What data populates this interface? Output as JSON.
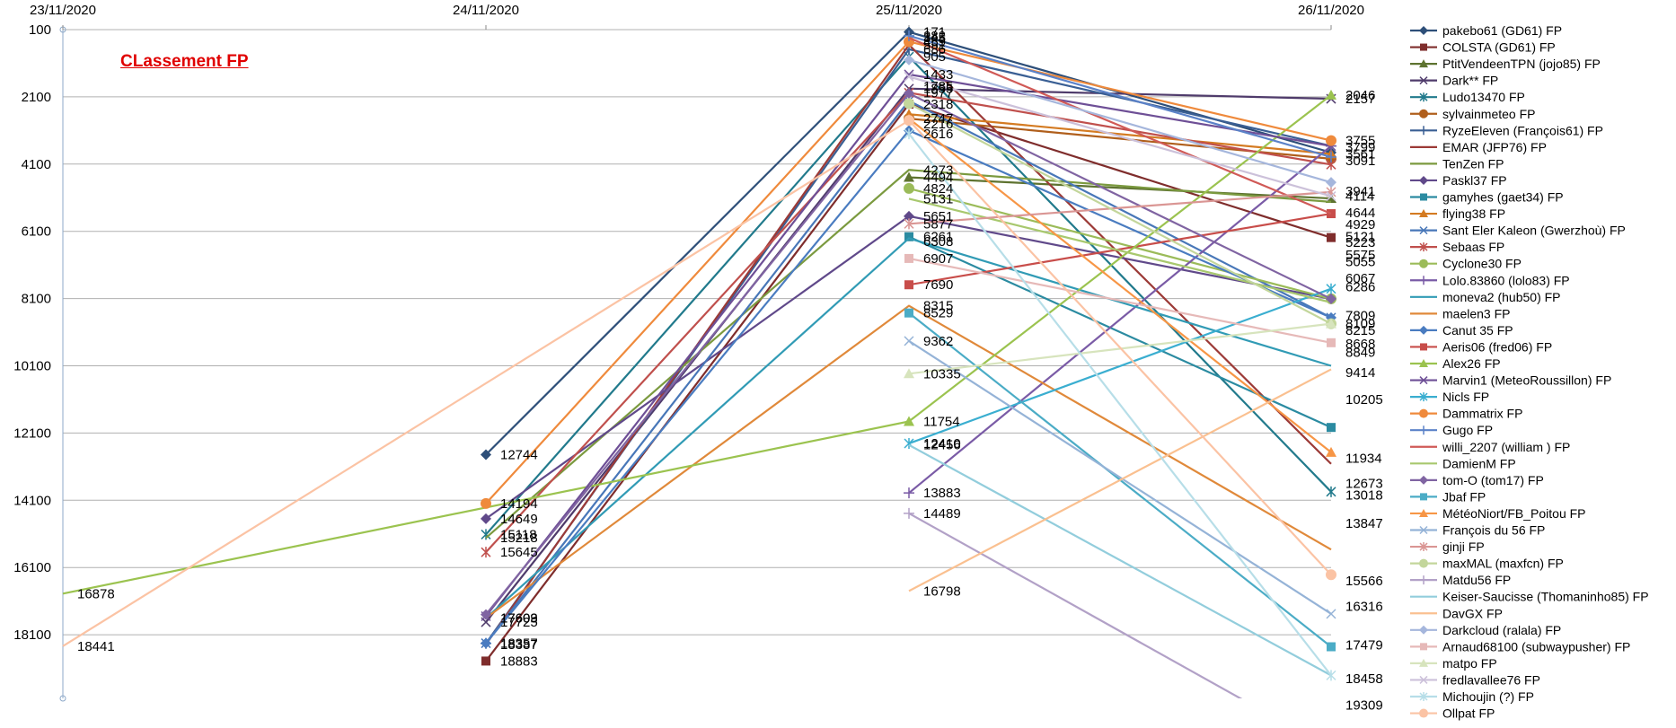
{
  "chart_data": {
    "type": "line",
    "title": "CLassement FP",
    "xlabel": "",
    "ylabel": "",
    "categories": [
      "23/11/2020",
      "24/11/2020",
      "25/11/2020",
      "26/11/2020"
    ],
    "y_ticks": [
      100,
      2100,
      4100,
      6100,
      8100,
      10100,
      12100,
      14100,
      16100,
      18100
    ],
    "ylim": [
      100,
      20100
    ],
    "y_reversed": true,
    "grid": true,
    "legend_position": "right",
    "series": [
      {
        "name": "pakebo61 (GD61) FP",
        "color": "#2e4f79",
        "marker": "diamond",
        "values": [
          null,
          12744,
          171,
          3755
        ]
      },
      {
        "name": "COLSTA (GD61) FP",
        "color": "#7f2d2c",
        "marker": "square",
        "values": [
          null,
          18883,
          2318,
          6286
        ]
      },
      {
        "name": "PtitVendeenTPN (jojo85) FP",
        "color": "#5e7330",
        "marker": "triangle",
        "values": [
          null,
          null,
          4494,
          5121
        ]
      },
      {
        "name": "Dark** FP",
        "color": "#4f3b6b",
        "marker": "x",
        "values": [
          null,
          17725,
          1855,
          2157
        ]
      },
      {
        "name": "Ludo13470 FP",
        "color": "#217a8c",
        "marker": "star",
        "values": [
          null,
          15118,
          905,
          13847
        ]
      },
      {
        "name": "sylvainmeteo FP",
        "color": "#b05f1c",
        "marker": "circle",
        "values": [
          null,
          null,
          2747,
          3941
        ]
      },
      {
        "name": "RyzeEleven (François61) FP",
        "color": "#3a5f94",
        "marker": "plus",
        "values": [
          null,
          18357,
          686,
          3561
        ]
      },
      {
        "name": "EMAR (JFP76) FP",
        "color": "#9c3a37",
        "marker": "none",
        "values": [
          null,
          18387,
          551,
          13018
        ]
      },
      {
        "name": "TenZen  FP",
        "color": "#7b9a3f",
        "marker": "none",
        "values": [
          null,
          15218,
          4273,
          5223
        ]
      },
      {
        "name": "Paskl37 FP",
        "color": "#60498a",
        "marker": "diamond",
        "values": [
          null,
          14649,
          5651,
          8109
        ]
      },
      {
        "name": "gamyhes (gaet34) FP",
        "color": "#2b8ba1",
        "marker": "square",
        "values": [
          null,
          null,
          6261,
          11934
        ]
      },
      {
        "name": "flying38 FP",
        "color": "#d47b22",
        "marker": "triangle",
        "values": [
          null,
          null,
          2616,
          3799
        ]
      },
      {
        "name": "Sant Eler Kaleon (Gwerzhoù) FP",
        "color": "#4877b8",
        "marker": "x",
        "values": [
          null,
          18352,
          2216,
          8668
        ]
      },
      {
        "name": "Sebaas FP",
        "color": "#c0504d",
        "marker": "star",
        "values": [
          null,
          15645,
          1977,
          4114
        ]
      },
      {
        "name": "Cyclone30  FP",
        "color": "#9bbb59",
        "marker": "circle",
        "values": [
          null,
          null,
          4824,
          8109
        ]
      },
      {
        "name": "Lolo.83860 (lolo83) FP",
        "color": "#7a5ba6",
        "marker": "plus",
        "values": [
          null,
          null,
          13883,
          3561
        ]
      },
      {
        "name": "moneva2 (hub50) FP",
        "color": "#319bb5",
        "marker": "none",
        "values": [
          null,
          17609,
          6308,
          10100
        ]
      },
      {
        "name": "maelen3  FP",
        "color": "#e0893a",
        "marker": "none",
        "values": [
          null,
          17603,
          8315,
          15566
        ]
      },
      {
        "name": "Canut 35  FP",
        "color": "#4a7cc0",
        "marker": "diamond",
        "values": [
          null,
          18352,
          3100,
          8668
        ]
      },
      {
        "name": "Aeris06 (fred06) FP",
        "color": "#c84d4a",
        "marker": "square",
        "values": [
          null,
          null,
          7690,
          5575
        ]
      },
      {
        "name": "Alex26 FP",
        "color": "#9bc34f",
        "marker": "triangle",
        "values": [
          16878,
          null,
          11754,
          2046
        ]
      },
      {
        "name": "Marvin1 (MeteoRoussillon) FP",
        "color": "#6e4f96",
        "marker": "x",
        "values": [
          null,
          17550,
          1433,
          3561
        ]
      },
      {
        "name": "Nicls FP",
        "color": "#3aaed0",
        "marker": "star",
        "values": [
          null,
          null,
          12410,
          7809
        ]
      },
      {
        "name": "Dammatrix FP",
        "color": "#ef8a3c",
        "marker": "circle",
        "values": [
          null,
          14194,
          459,
          3400
        ]
      },
      {
        "name": "Gugo FP",
        "color": "#5b82c8",
        "marker": "plus",
        "values": [
          null,
          null,
          282,
          3891
        ]
      },
      {
        "name": "willi_2207 (william ) FP",
        "color": "#d05a57",
        "marker": "none",
        "values": [
          null,
          null,
          345,
          5575
        ]
      },
      {
        "name": "DamienM FP",
        "color": "#a8c86e",
        "marker": "none",
        "values": [
          null,
          null,
          5131,
          8215
        ]
      },
      {
        "name": "tom-O (tom17) FP",
        "color": "#8064a2",
        "marker": "diamond",
        "values": [
          null,
          17500,
          2000,
          8109
        ]
      },
      {
        "name": "Jbaf FP",
        "color": "#4bacc6",
        "marker": "square",
        "values": [
          null,
          null,
          8529,
          18458
        ]
      },
      {
        "name": "MétéoNiort/FB_Poitou FP",
        "color": "#f79646",
        "marker": "triangle",
        "values": [
          null,
          null,
          2747,
          12673
        ]
      },
      {
        "name": "François du 56 FP",
        "color": "#95b3d7",
        "marker": "x",
        "values": [
          null,
          null,
          9362,
          17479
        ]
      },
      {
        "name": "ginji FP",
        "color": "#da9694",
        "marker": "star",
        "values": [
          null,
          null,
          5877,
          4929
        ]
      },
      {
        "name": "maxMAL (maxfcn) FP",
        "color": "#c3d69b",
        "marker": "circle",
        "values": [
          null,
          null,
          2300,
          8849
        ]
      },
      {
        "name": "Matdu56 FP",
        "color": "#b2a1c7",
        "marker": "plus",
        "values": [
          null,
          null,
          14489,
          21500
        ]
      },
      {
        "name": "Keiser-Saucisse (Thomaninho85) FP",
        "color": "#92cddc",
        "marker": "none",
        "values": [
          null,
          null,
          12456,
          19309
        ]
      },
      {
        "name": "DavGX FP",
        "color": "#fac090",
        "marker": "none",
        "values": [
          null,
          null,
          16798,
          10205
        ]
      },
      {
        "name": "Darkcloud (ralala) FP",
        "color": "#a5b6dc",
        "marker": "diamond",
        "values": [
          null,
          null,
          1000,
          4644
        ]
      },
      {
        "name": "Arnaud68100 (subwaypusher) FP",
        "color": "#e6b9b8",
        "marker": "square",
        "values": [
          null,
          null,
          6907,
          9414
        ]
      },
      {
        "name": "matpo FP",
        "color": "#d7e4bd",
        "marker": "triangle",
        "values": [
          null,
          null,
          10335,
          8849
        ]
      },
      {
        "name": "fredlavallee76 FP",
        "color": "#ccc1da",
        "marker": "x",
        "values": [
          null,
          null,
          1500,
          5055
        ]
      },
      {
        "name": "Michoujin (?) FP",
        "color": "#b7dee8",
        "marker": "star",
        "values": [
          null,
          null,
          3200,
          19309
        ]
      },
      {
        "name": "Ollpat FP",
        "color": "#fbc3a4",
        "marker": "circle",
        "values": [
          18441,
          null,
          2800,
          16316
        ]
      }
    ],
    "data_labels": [
      {
        "x": "23/11/2020",
        "text": "16878",
        "y": 16878
      },
      {
        "x": "23/11/2020",
        "text": "18441",
        "y": 18441
      },
      {
        "x": "24/11/2020",
        "text": "12744",
        "y": 12744
      },
      {
        "x": "24/11/2020",
        "text": "14194",
        "y": 14194
      },
      {
        "x": "24/11/2020",
        "text": "14649",
        "y": 14649
      },
      {
        "x": "24/11/2020",
        "text": "15118",
        "y": 15118
      },
      {
        "x": "24/11/2020",
        "text": "15218",
        "y": 15218
      },
      {
        "x": "24/11/2020",
        "text": "15645",
        "y": 15645
      },
      {
        "x": "24/11/2020",
        "text": "17609",
        "y": 17609
      },
      {
        "x": "24/11/2020",
        "text": "17603",
        "y": 17603
      },
      {
        "x": "24/11/2020",
        "text": "17725",
        "y": 17725
      },
      {
        "x": "24/11/2020",
        "text": "18357",
        "y": 18357
      },
      {
        "x": "24/11/2020",
        "text": "18387",
        "y": 18387
      },
      {
        "x": "24/11/2020",
        "text": "18883",
        "y": 18883
      },
      {
        "x": "25/11/2020",
        "text": "171",
        "y": 171
      },
      {
        "x": "25/11/2020",
        "text": "459",
        "y": 459
      },
      {
        "x": "25/11/2020",
        "text": "282",
        "y": 282
      },
      {
        "x": "25/11/2020",
        "text": "345",
        "y": 345
      },
      {
        "x": "25/11/2020",
        "text": "551",
        "y": 551
      },
      {
        "x": "25/11/2020",
        "text": "686",
        "y": 686
      },
      {
        "x": "25/11/2020",
        "text": "905",
        "y": 905
      },
      {
        "x": "25/11/2020",
        "text": "1433",
        "y": 1433
      },
      {
        "x": "25/11/2020",
        "text": "1785",
        "y": 1785
      },
      {
        "x": "25/11/2020",
        "text": "1855",
        "y": 1855
      },
      {
        "x": "25/11/2020",
        "text": "1977",
        "y": 1977
      },
      {
        "x": "25/11/2020",
        "text": "2318",
        "y": 2318
      },
      {
        "x": "25/11/2020",
        "text": "2747",
        "y": 2747
      },
      {
        "x": "25/11/2020",
        "text": "2216",
        "y": 2900
      },
      {
        "x": "25/11/2020",
        "text": "2616",
        "y": 3200
      },
      {
        "x": "25/11/2020",
        "text": "4273",
        "y": 4273
      },
      {
        "x": "25/11/2020",
        "text": "4494",
        "y": 4494
      },
      {
        "x": "25/11/2020",
        "text": "4824",
        "y": 4824
      },
      {
        "x": "25/11/2020",
        "text": "5131",
        "y": 5131
      },
      {
        "x": "25/11/2020",
        "text": "5651",
        "y": 5651
      },
      {
        "x": "25/11/2020",
        "text": "5877",
        "y": 5877
      },
      {
        "x": "25/11/2020",
        "text": "6261",
        "y": 6261
      },
      {
        "x": "25/11/2020",
        "text": "6308",
        "y": 6400
      },
      {
        "x": "25/11/2020",
        "text": "6907",
        "y": 6907
      },
      {
        "x": "25/11/2020",
        "text": "7690",
        "y": 7690
      },
      {
        "x": "25/11/2020",
        "text": "8315",
        "y": 8315
      },
      {
        "x": "25/11/2020",
        "text": "8529",
        "y": 8529
      },
      {
        "x": "25/11/2020",
        "text": "9362",
        "y": 9362
      },
      {
        "x": "25/11/2020",
        "text": "10335",
        "y": 10335
      },
      {
        "x": "25/11/2020",
        "text": "11754",
        "y": 11754
      },
      {
        "x": "25/11/2020",
        "text": "12410",
        "y": 12410
      },
      {
        "x": "25/11/2020",
        "text": "12456",
        "y": 12456
      },
      {
        "x": "25/11/2020",
        "text": "13883",
        "y": 13883
      },
      {
        "x": "25/11/2020",
        "text": "14489",
        "y": 14489
      },
      {
        "x": "25/11/2020",
        "text": "16798",
        "y": 16798
      },
      {
        "x": "26/11/2020",
        "text": "2046",
        "y": 2046
      },
      {
        "x": "26/11/2020",
        "text": "2157",
        "y": 2157
      },
      {
        "x": "26/11/2020",
        "text": "3755",
        "y": 3400
      },
      {
        "x": "26/11/2020",
        "text": "3799",
        "y": 3600
      },
      {
        "x": "26/11/2020",
        "text": "3561",
        "y": 3800
      },
      {
        "x": "26/11/2020",
        "text": "3091",
        "y": 4000
      },
      {
        "x": "26/11/2020",
        "text": "3941",
        "y": 4900
      },
      {
        "x": "26/11/2020",
        "text": "4114",
        "y": 5050
      },
      {
        "x": "26/11/2020",
        "text": "4644",
        "y": 5550
      },
      {
        "x": "26/11/2020",
        "text": "4929",
        "y": 5900
      },
      {
        "x": "26/11/2020",
        "text": "5121",
        "y": 6250
      },
      {
        "x": "26/11/2020",
        "text": "5223",
        "y": 6430
      },
      {
        "x": "26/11/2020",
        "text": "5575",
        "y": 6800
      },
      {
        "x": "26/11/2020",
        "text": "5055",
        "y": 7000
      },
      {
        "x": "26/11/2020",
        "text": "6067",
        "y": 7500
      },
      {
        "x": "26/11/2020",
        "text": "6286",
        "y": 7750
      },
      {
        "x": "26/11/2020",
        "text": "7809",
        "y": 8600
      },
      {
        "x": "26/11/2020",
        "text": "8109",
        "y": 8850
      },
      {
        "x": "26/11/2020",
        "text": "8215",
        "y": 9050
      },
      {
        "x": "26/11/2020",
        "text": "8668",
        "y": 9450
      },
      {
        "x": "26/11/2020",
        "text": "8849",
        "y": 9700
      },
      {
        "x": "26/11/2020",
        "text": "9414",
        "y": 10300
      },
      {
        "x": "26/11/2020",
        "text": "10205",
        "y": 11100
      },
      {
        "x": "26/11/2020",
        "text": "11934",
        "y": 12850
      },
      {
        "x": "26/11/2020",
        "text": "12673",
        "y": 13600
      },
      {
        "x": "26/11/2020",
        "text": "13018",
        "y": 13950
      },
      {
        "x": "26/11/2020",
        "text": "13847",
        "y": 14780
      },
      {
        "x": "26/11/2020",
        "text": "15566",
        "y": 16500
      },
      {
        "x": "26/11/2020",
        "text": "16316",
        "y": 17250
      },
      {
        "x": "26/11/2020",
        "text": "17479",
        "y": 18400
      },
      {
        "x": "26/11/2020",
        "text": "18458",
        "y": 19400
      },
      {
        "x": "26/11/2020",
        "text": "19309",
        "y": 20200
      }
    ]
  }
}
